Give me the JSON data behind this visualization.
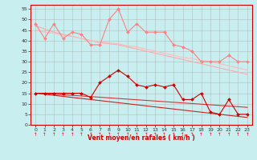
{
  "background_color": "#c8eef0",
  "grid_color": "#b0b0b0",
  "xlabel": "Vent moyen/en rafales ( km/h )",
  "x_values": [
    0,
    1,
    2,
    3,
    4,
    5,
    6,
    7,
    8,
    9,
    10,
    11,
    12,
    13,
    14,
    15,
    16,
    17,
    18,
    19,
    20,
    21,
    22,
    23
  ],
  "series": [
    {
      "name": "rafales_data",
      "color": "#ff8080",
      "linewidth": 0.8,
      "marker": "D",
      "markersize": 2.0,
      "values": [
        48,
        41,
        48,
        41,
        44,
        43,
        38,
        38,
        50,
        55,
        44,
        48,
        44,
        44,
        44,
        38,
        37,
        35,
        30,
        30,
        30,
        33,
        30,
        30
      ]
    },
    {
      "name": "rafales_trend1",
      "color": "#ffaaaa",
      "linewidth": 0.8,
      "marker": null,
      "values": [
        47,
        45.5,
        44,
        43,
        42,
        41,
        40,
        39,
        38.5,
        38,
        37,
        36,
        35,
        34,
        33,
        32,
        31,
        30,
        29,
        28,
        27,
        26,
        25,
        24
      ]
    },
    {
      "name": "rafales_trend2",
      "color": "#ffbbbb",
      "linewidth": 0.8,
      "marker": null,
      "values": [
        45,
        44,
        43.5,
        42.5,
        42,
        41,
        40,
        39.5,
        39,
        38.5,
        37.5,
        37,
        36,
        35,
        34,
        33,
        32,
        31.5,
        30.5,
        30,
        29,
        28,
        27,
        26
      ]
    },
    {
      "name": "moyen_data",
      "color": "#cc0000",
      "linewidth": 0.8,
      "marker": "D",
      "markersize": 2.0,
      "values": [
        15,
        15,
        15,
        15,
        15,
        15,
        13,
        20,
        23,
        26,
        23,
        19,
        18,
        19,
        18,
        19,
        12,
        12,
        15,
        6,
        5,
        12,
        5,
        5
      ]
    },
    {
      "name": "moyen_trend1",
      "color": "#cc2222",
      "linewidth": 0.8,
      "marker": null,
      "values": [
        15.0,
        14.5,
        14.0,
        13.5,
        13.0,
        12.5,
        12.0,
        11.5,
        11.0,
        10.5,
        10.0,
        9.5,
        9.0,
        8.5,
        8.0,
        7.5,
        7.0,
        6.5,
        6.0,
        5.5,
        5.0,
        4.5,
        4.0,
        3.5
      ]
    },
    {
      "name": "moyen_trend2",
      "color": "#dd3333",
      "linewidth": 0.8,
      "marker": null,
      "values": [
        15.0,
        14.8,
        14.5,
        14.2,
        14.0,
        13.7,
        13.4,
        13.1,
        12.8,
        12.5,
        12.2,
        11.9,
        11.6,
        11.3,
        11.0,
        10.7,
        10.4,
        10.1,
        9.8,
        9.5,
        9.2,
        8.9,
        8.6,
        8.3
      ]
    }
  ],
  "ylim": [
    0,
    57
  ],
  "yticks": [
    0,
    5,
    10,
    15,
    20,
    25,
    30,
    35,
    40,
    45,
    50,
    55
  ],
  "xticks": [
    0,
    1,
    2,
    3,
    4,
    5,
    6,
    7,
    8,
    9,
    10,
    11,
    12,
    13,
    14,
    15,
    16,
    17,
    18,
    19,
    20,
    21,
    22,
    23
  ],
  "tick_fontsize": 4.5,
  "xlabel_fontsize": 5.5,
  "arrow_color": "#cc0000",
  "spine_color": "#cc0000"
}
